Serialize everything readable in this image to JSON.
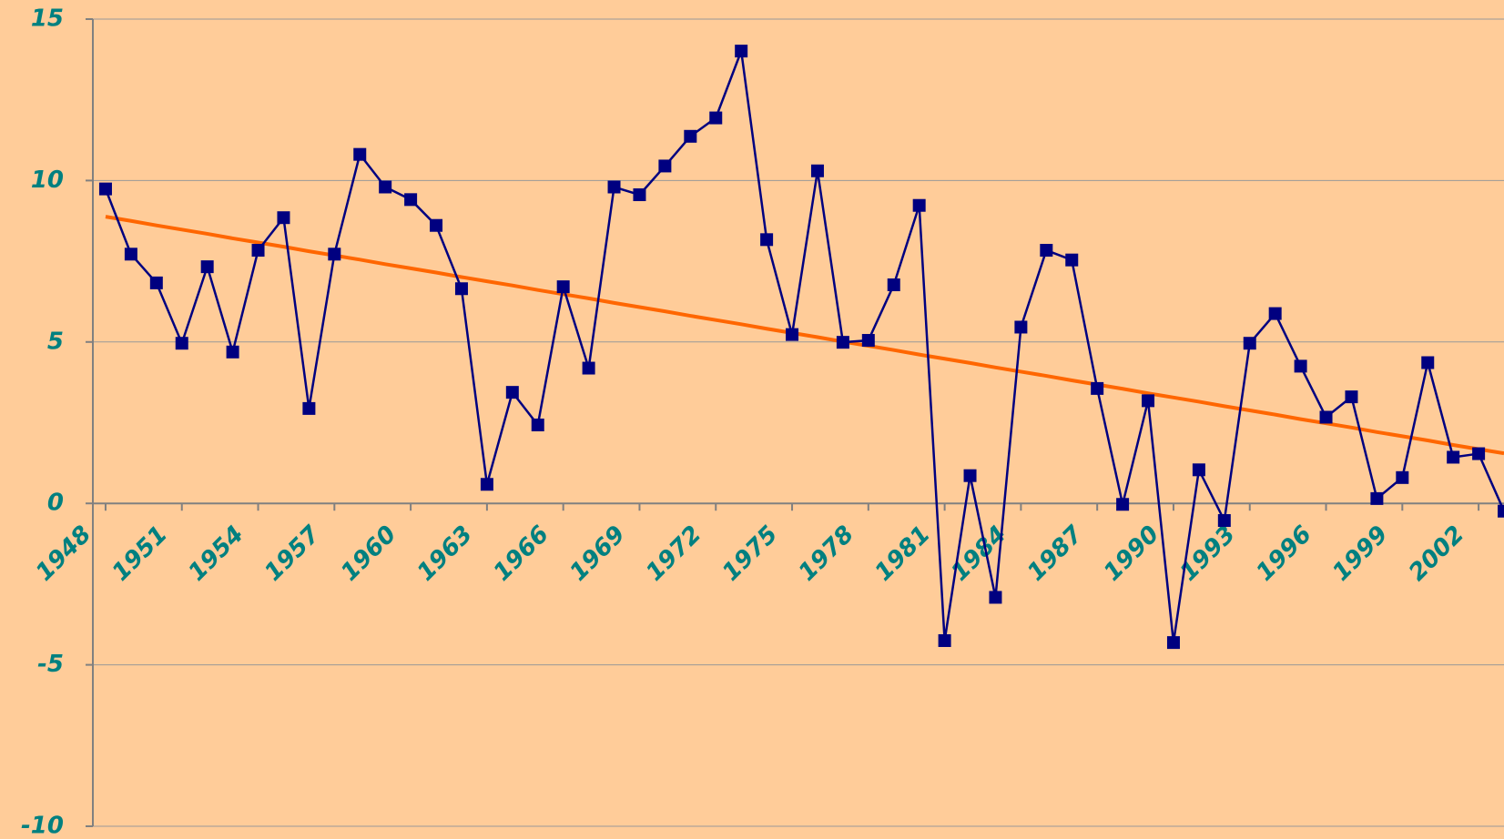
{
  "chart_data": {
    "type": "line",
    "x": [
      1948,
      1949,
      1950,
      1951,
      1952,
      1953,
      1954,
      1955,
      1956,
      1957,
      1958,
      1959,
      1960,
      1961,
      1962,
      1963,
      1964,
      1965,
      1966,
      1967,
      1968,
      1969,
      1970,
      1971,
      1972,
      1973,
      1974,
      1975,
      1976,
      1977,
      1978,
      1979,
      1980,
      1981,
      1982,
      1983,
      1984,
      1985,
      1986,
      1987,
      1988,
      1989,
      1990,
      1991,
      1992,
      1993,
      1994,
      1995,
      1996,
      1997,
      1998,
      1999,
      2000,
      2001,
      2002,
      2003
    ],
    "series": [
      {
        "color": "#000080",
        "marker": "square",
        "values": [
          9.74,
          7.72,
          6.83,
          4.96,
          7.33,
          4.69,
          7.84,
          8.85,
          2.94,
          7.72,
          10.81,
          9.8,
          9.41,
          8.61,
          6.65,
          0.59,
          3.44,
          2.43,
          6.71,
          4.19,
          9.8,
          9.56,
          10.45,
          11.37,
          11.94,
          14.01,
          8.17,
          5.23,
          10.3,
          4.99,
          5.05,
          6.77,
          9.23,
          -4.25,
          0.86,
          -2.91,
          5.46,
          7.84,
          7.54,
          3.56,
          -0.03,
          3.18,
          -4.31,
          1.04,
          -0.53,
          4.96,
          5.88,
          4.25,
          2.67,
          3.3,
          0.15,
          0.8,
          4.36,
          1.43,
          1.54,
          -0.24
        ]
      },
      {
        "color": "#ff6600",
        "marker": "none",
        "values": [
          8.88,
          8.75,
          8.61,
          8.48,
          8.35,
          8.21,
          8.08,
          7.95,
          7.81,
          7.68,
          7.55,
          7.41,
          7.28,
          7.15,
          7.01,
          6.88,
          6.75,
          6.61,
          6.48,
          6.35,
          6.21,
          6.08,
          5.95,
          5.81,
          5.68,
          5.55,
          5.41,
          5.28,
          5.15,
          5.01,
          4.88,
          4.75,
          4.61,
          4.48,
          4.35,
          4.21,
          4.08,
          3.95,
          3.81,
          3.68,
          3.55,
          3.41,
          3.28,
          3.15,
          3.01,
          2.88,
          2.75,
          2.61,
          2.48,
          2.35,
          2.21,
          2.08,
          1.95,
          1.81,
          1.68,
          1.55
        ]
      }
    ],
    "xlim": [
      1947.5,
      2003.5
    ],
    "xticks": [
      1948,
      1951,
      1954,
      1957,
      1960,
      1963,
      1966,
      1969,
      1972,
      1975,
      1978,
      1981,
      1984,
      1987,
      1990,
      1993,
      1996,
      1999,
      2002
    ],
    "ylim": [
      -10,
      15
    ],
    "yticks": [
      -10,
      -5,
      0,
      5,
      10,
      15
    ],
    "grid": true
  }
}
